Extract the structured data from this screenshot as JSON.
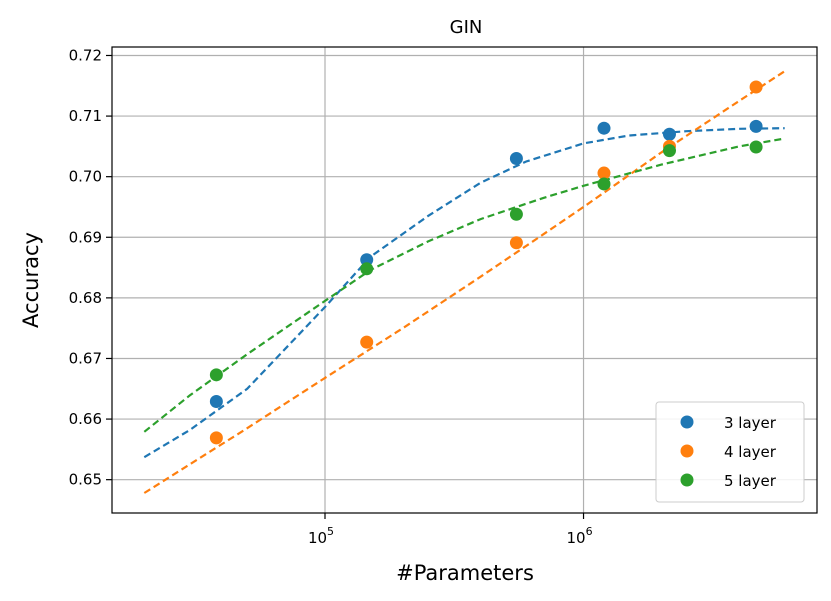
{
  "chart_data": {
    "type": "scatter",
    "title": "GIN",
    "xlabel": "#Parameters",
    "ylabel": "Accuracy",
    "xscale": "log",
    "xlim": [
      15000,
      8000000
    ],
    "ylim": [
      0.6445,
      0.7214
    ],
    "grid": true,
    "legend_position": "lower-right",
    "x_ticks": [
      {
        "value": 100000,
        "base": "10",
        "exp": "5"
      },
      {
        "value": 1000000,
        "base": "10",
        "exp": "6"
      }
    ],
    "y_ticks": [
      {
        "value": 0.65,
        "label": "0.65"
      },
      {
        "value": 0.66,
        "label": "0.66"
      },
      {
        "value": 0.67,
        "label": "0.67"
      },
      {
        "value": 0.68,
        "label": "0.68"
      },
      {
        "value": 0.69,
        "label": "0.69"
      },
      {
        "value": 0.7,
        "label": "0.70"
      },
      {
        "value": 0.71,
        "label": "0.71"
      },
      {
        "value": 0.72,
        "label": "0.72"
      }
    ],
    "series": [
      {
        "name": "3 layer",
        "color": "#1f77b4",
        "points": [
          [
            38000,
            0.6629
          ],
          [
            145000,
            0.6863
          ],
          [
            550000,
            0.703
          ],
          [
            1200000,
            0.708
          ],
          [
            2150000,
            0.707
          ],
          [
            4650000,
            0.7083
          ]
        ],
        "fit": [
          [
            20000,
            0.6537
          ],
          [
            30000,
            0.6582
          ],
          [
            50000,
            0.665
          ],
          [
            100000,
            0.6785
          ],
          [
            150000,
            0.6868
          ],
          [
            250000,
            0.6935
          ],
          [
            400000,
            0.699
          ],
          [
            600000,
            0.7025
          ],
          [
            1000000,
            0.7055
          ],
          [
            1500000,
            0.7068
          ],
          [
            2500000,
            0.7075
          ],
          [
            4000000,
            0.7079
          ],
          [
            6000000,
            0.708
          ]
        ]
      },
      {
        "name": "4 layer",
        "color": "#ff7f0e",
        "points": [
          [
            38000,
            0.6569
          ],
          [
            145000,
            0.6727
          ],
          [
            550000,
            0.6891
          ],
          [
            1200000,
            0.7006
          ],
          [
            2150000,
            0.705
          ],
          [
            4650000,
            0.7148
          ]
        ],
        "fit": [
          [
            20000,
            0.6478
          ],
          [
            50000,
            0.6585
          ],
          [
            100000,
            0.6668
          ],
          [
            200000,
            0.675
          ],
          [
            400000,
            0.6835
          ],
          [
            700000,
            0.6905
          ],
          [
            1000000,
            0.695
          ],
          [
            2000000,
            0.704
          ],
          [
            4000000,
            0.7125
          ],
          [
            6000000,
            0.7174
          ]
        ]
      },
      {
        "name": "5 layer",
        "color": "#2ca02c",
        "points": [
          [
            38000,
            0.6673
          ],
          [
            145000,
            0.6848
          ],
          [
            550000,
            0.6938
          ],
          [
            1200000,
            0.6988
          ],
          [
            2150000,
            0.7043
          ],
          [
            4650000,
            0.7049
          ]
        ],
        "fit": [
          [
            20000,
            0.6579
          ],
          [
            30000,
            0.6639
          ],
          [
            50000,
            0.6707
          ],
          [
            100000,
            0.6795
          ],
          [
            150000,
            0.6846
          ],
          [
            250000,
            0.6893
          ],
          [
            400000,
            0.693
          ],
          [
            700000,
            0.6965
          ],
          [
            1000000,
            0.6985
          ],
          [
            2000000,
            0.702
          ],
          [
            4000000,
            0.705
          ],
          [
            6000000,
            0.7063
          ]
        ]
      }
    ]
  }
}
